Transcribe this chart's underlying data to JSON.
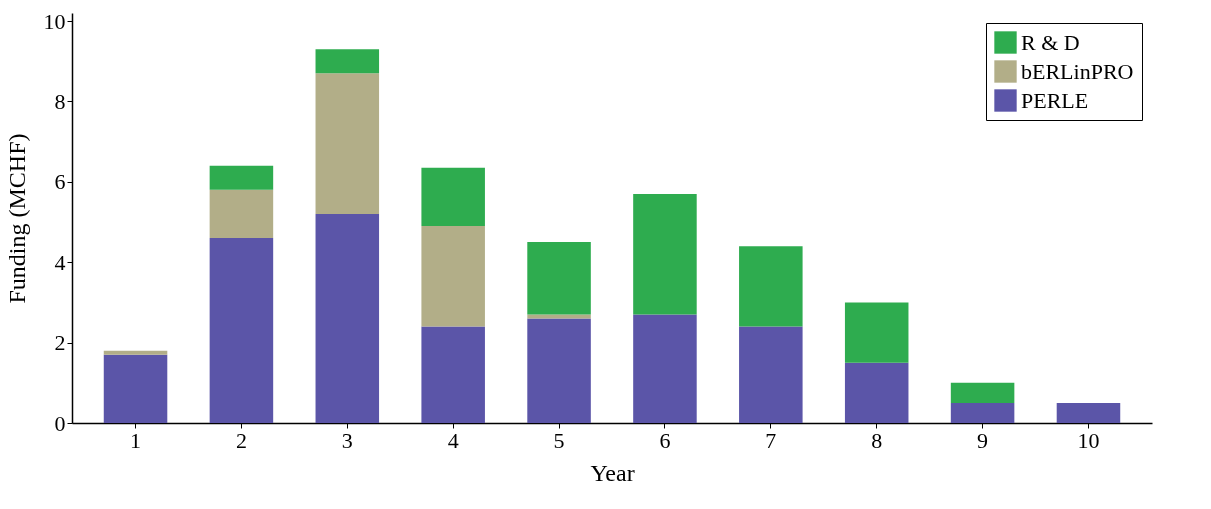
{
  "chart_data": {
    "type": "bar",
    "stacked": true,
    "xlabel": "Year",
    "ylabel": "Funding (MCHF)",
    "categories": [
      "1",
      "2",
      "3",
      "4",
      "5",
      "6",
      "7",
      "8",
      "9",
      "10"
    ],
    "ylim": [
      0,
      10.2
    ],
    "yticks": [
      0,
      2,
      4,
      6,
      8,
      10
    ],
    "legend": "top right",
    "grid": false,
    "series": [
      {
        "name": "PERLE",
        "color": "#5b55a8",
        "values": [
          1.7,
          4.6,
          5.2,
          2.4,
          2.6,
          2.7,
          2.4,
          1.5,
          0.5,
          0.5
        ]
      },
      {
        "name": "bERLinPRO",
        "color": "#b2ae88",
        "values": [
          0.1,
          1.2,
          3.5,
          2.5,
          0.1,
          null,
          null,
          null,
          null,
          null
        ]
      },
      {
        "name": "R & D",
        "color": "#2eac4f",
        "values": [
          null,
          0.6,
          0.6,
          1.45,
          1.8,
          3.0,
          2.0,
          1.5,
          0.5,
          null
        ]
      }
    ]
  }
}
